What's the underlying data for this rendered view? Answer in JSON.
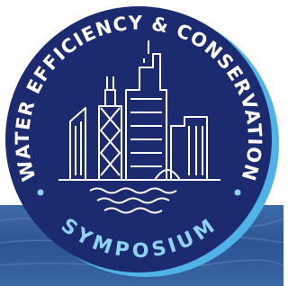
{
  "logo": {
    "top_text": "WATER EFFICIENCY & CONSERVATION",
    "bottom_text": "SYMPOSIUM"
  }
}
